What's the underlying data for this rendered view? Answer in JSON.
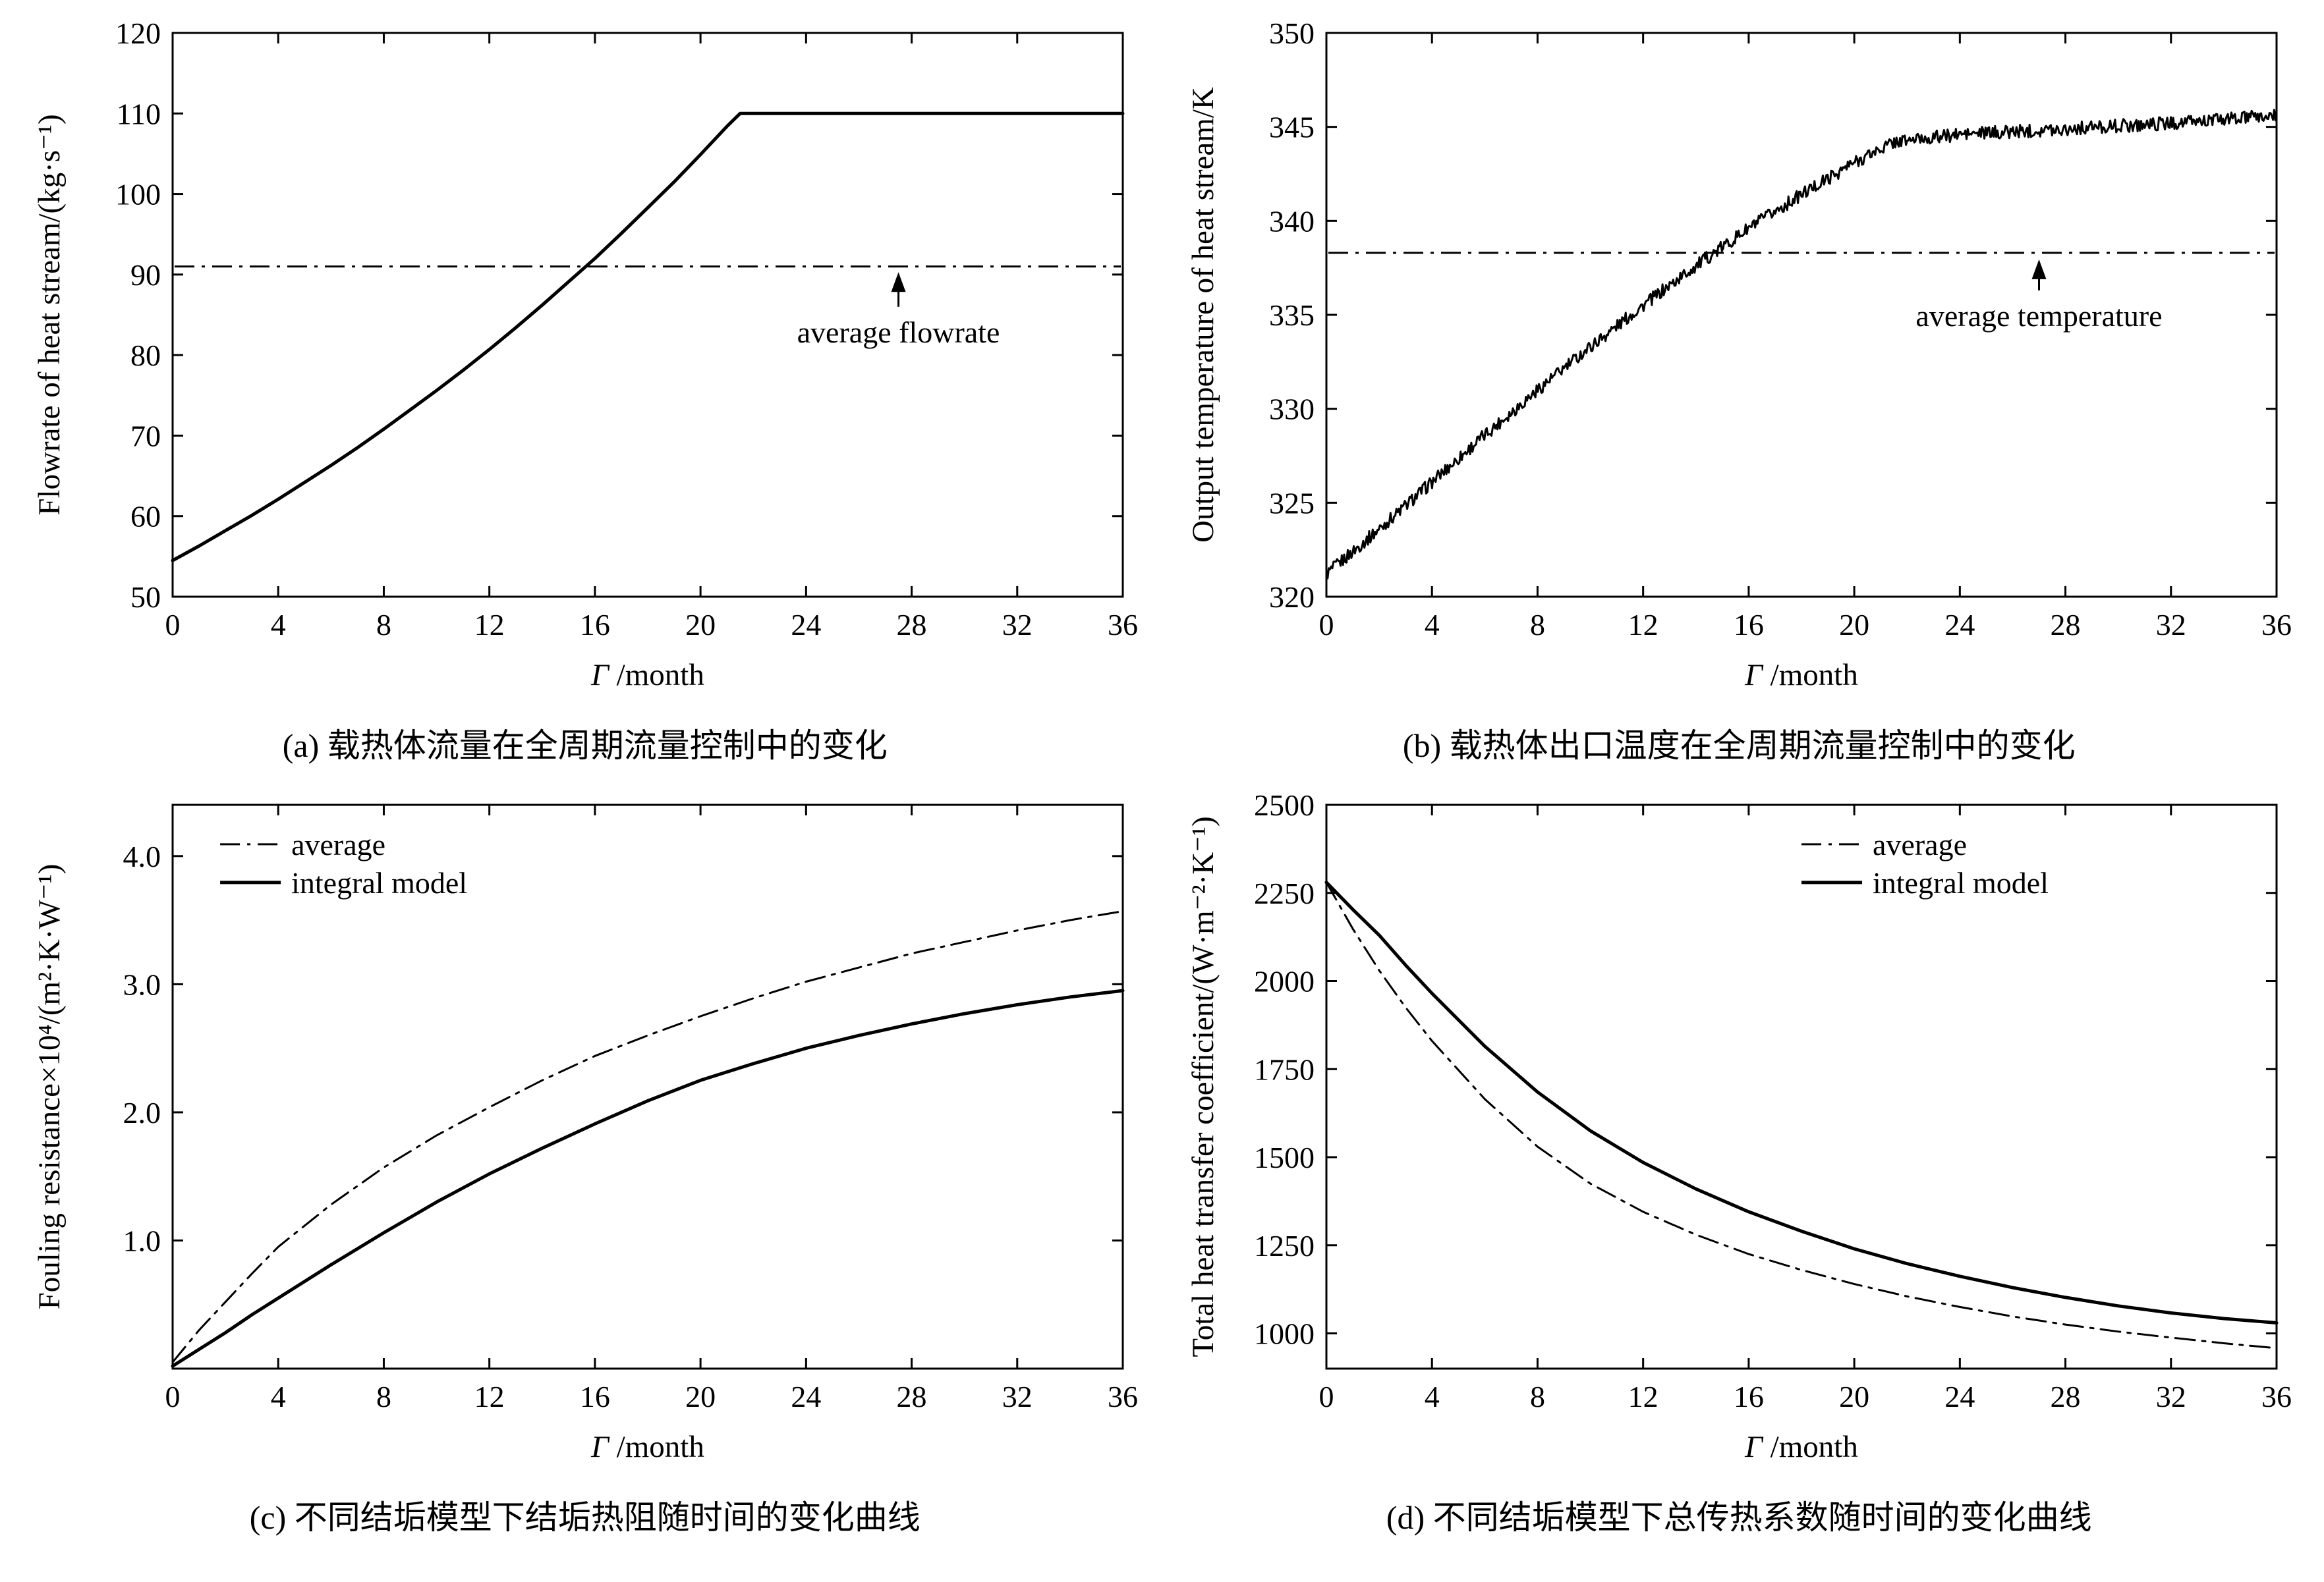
{
  "page": {
    "background": "#ffffff",
    "line_color": "#000000"
  },
  "chart_data": [
    {
      "id": "a",
      "type": "line",
      "caption": "(a) 载热体流量在全周期流量控制中的变化",
      "xlabel": "Γ/month",
      "ylabel": "Flowrate of heat stream/(kg·s⁻¹)",
      "xlim": [
        0,
        36
      ],
      "ylim": [
        50,
        120
      ],
      "xticks": [
        0,
        4,
        8,
        12,
        16,
        20,
        24,
        28,
        32,
        36
      ],
      "yticks": [
        50,
        60,
        70,
        80,
        90,
        100,
        110,
        120
      ],
      "grid": false,
      "series": [
        {
          "name": "flowrate",
          "style": "solid",
          "x": [
            0,
            1,
            2,
            3,
            4,
            5,
            6,
            7,
            8,
            9,
            10,
            11,
            12,
            13,
            14,
            15,
            16,
            17,
            18,
            19,
            20,
            21,
            21.5,
            22,
            24,
            28,
            32,
            36
          ],
          "y": [
            54.5,
            56.3,
            58.2,
            60.1,
            62.1,
            64.2,
            66.3,
            68.5,
            70.8,
            73.2,
            75.6,
            78.1,
            80.7,
            83.4,
            86.2,
            89.1,
            92.0,
            95.1,
            98.3,
            101.5,
            104.9,
            108.4,
            110,
            110,
            110,
            110,
            110,
            110
          ]
        },
        {
          "name": "average flowrate",
          "style": "dashdot",
          "y_const": 91
        }
      ],
      "annotation": {
        "text": "average flowrate",
        "x": 27.5,
        "arrow_tip_y": 90.3,
        "arrow_base_y": 86.0
      }
    },
    {
      "id": "b",
      "type": "line",
      "caption": "(b) 载热体出口温度在全周期流量控制中的变化",
      "xlabel": "Γ/month",
      "ylabel": "Output temperature of heat stream/K",
      "xlim": [
        0,
        36
      ],
      "ylim": [
        320,
        350
      ],
      "xticks": [
        0,
        4,
        8,
        12,
        16,
        20,
        24,
        28,
        32,
        36
      ],
      "yticks": [
        320,
        325,
        330,
        335,
        340,
        345,
        350
      ],
      "grid": false,
      "series": [
        {
          "name": "output temperature",
          "style": "solid",
          "noise": 0.35,
          "x": [
            0,
            2,
            4,
            6,
            8,
            10,
            12,
            14,
            16,
            18,
            20,
            21.5,
            24,
            28,
            32,
            36
          ],
          "y": [
            321.2,
            323.6,
            326.1,
            328.6,
            331.0,
            333.3,
            335.5,
            337.6,
            339.6,
            341.4,
            343.1,
            344.2,
            344.6,
            344.9,
            345.2,
            345.6
          ]
        },
        {
          "name": "average temperature",
          "style": "dashdot",
          "y_const": 338.3
        }
      ],
      "annotation": {
        "text": "average temperature",
        "x": 27.0,
        "arrow_tip_y": 337.95,
        "arrow_base_y": 336.3
      }
    },
    {
      "id": "c",
      "type": "line",
      "caption": "(c) 不同结垢模型下结垢热阻随时间的变化曲线",
      "xlabel": "Γ/month",
      "ylabel": "Fouling resistance×10⁴/(m²·K·W⁻¹)",
      "xlim": [
        0,
        36
      ],
      "ylim": [
        0,
        4.4
      ],
      "xticks": [
        0,
        4,
        8,
        12,
        16,
        20,
        24,
        28,
        32,
        36
      ],
      "yticks": [
        1,
        2,
        3,
        4
      ],
      "ytick_labels": [
        "1.0",
        "2.0",
        "3.0",
        "4.0"
      ],
      "grid": false,
      "legend": {
        "x": 0.05,
        "y": 0.07,
        "items": [
          {
            "label": "average",
            "style": "dashdot"
          },
          {
            "label": "integral model",
            "style": "solid"
          }
        ]
      },
      "series": [
        {
          "name": "average",
          "style": "dashdot",
          "x": [
            0,
            1,
            2,
            3,
            4,
            6,
            8,
            10,
            12,
            14,
            16,
            18,
            20,
            22,
            24,
            26,
            28,
            30,
            32,
            34,
            36
          ],
          "y": [
            0.05,
            0.3,
            0.52,
            0.74,
            0.95,
            1.28,
            1.57,
            1.82,
            2.04,
            2.25,
            2.44,
            2.6,
            2.75,
            2.89,
            3.02,
            3.13,
            3.24,
            3.33,
            3.42,
            3.5,
            3.57
          ]
        },
        {
          "name": "integral model",
          "style": "solid",
          "x": [
            0,
            1,
            2,
            3,
            4,
            6,
            8,
            10,
            12,
            14,
            16,
            18,
            20,
            22,
            24,
            26,
            28,
            30,
            32,
            34,
            36
          ],
          "y": [
            0.02,
            0.15,
            0.28,
            0.42,
            0.55,
            0.81,
            1.06,
            1.3,
            1.52,
            1.72,
            1.91,
            2.09,
            2.25,
            2.38,
            2.5,
            2.6,
            2.69,
            2.77,
            2.84,
            2.9,
            2.95
          ]
        }
      ]
    },
    {
      "id": "d",
      "type": "line",
      "caption": "(d) 不同结垢模型下总传热系数随时间的变化曲线",
      "xlabel": "Γ/month",
      "ylabel": "Total heat transfer coefficient/(W·m⁻²·K⁻¹)",
      "xlim": [
        0,
        36
      ],
      "ylim": [
        900,
        2500
      ],
      "xticks": [
        0,
        4,
        8,
        12,
        16,
        20,
        24,
        28,
        32,
        36
      ],
      "yticks": [
        1000,
        1250,
        1500,
        1750,
        2000,
        2250,
        2500
      ],
      "grid": false,
      "legend": {
        "x": 0.5,
        "y": 0.07,
        "items": [
          {
            "label": "average",
            "style": "dashdot"
          },
          {
            "label": "integral model",
            "style": "solid"
          }
        ]
      },
      "series": [
        {
          "name": "average",
          "style": "dashdot",
          "x": [
            0,
            1,
            2,
            3,
            4,
            6,
            8,
            10,
            12,
            14,
            16,
            18,
            20,
            22,
            24,
            26,
            28,
            30,
            32,
            34,
            36
          ],
          "y": [
            2280,
            2148,
            2030,
            1925,
            1830,
            1665,
            1530,
            1425,
            1345,
            1280,
            1225,
            1180,
            1140,
            1105,
            1075,
            1048,
            1025,
            1005,
            988,
            972,
            958
          ]
        },
        {
          "name": "integral model",
          "style": "solid",
          "x": [
            0,
            1,
            2,
            3,
            4,
            6,
            8,
            10,
            12,
            14,
            16,
            18,
            20,
            22,
            24,
            26,
            28,
            30,
            32,
            34,
            36
          ],
          "y": [
            2280,
            2203,
            2130,
            2045,
            1965,
            1815,
            1685,
            1575,
            1485,
            1410,
            1345,
            1290,
            1240,
            1198,
            1162,
            1130,
            1102,
            1078,
            1058,
            1042,
            1030
          ]
        }
      ]
    }
  ]
}
